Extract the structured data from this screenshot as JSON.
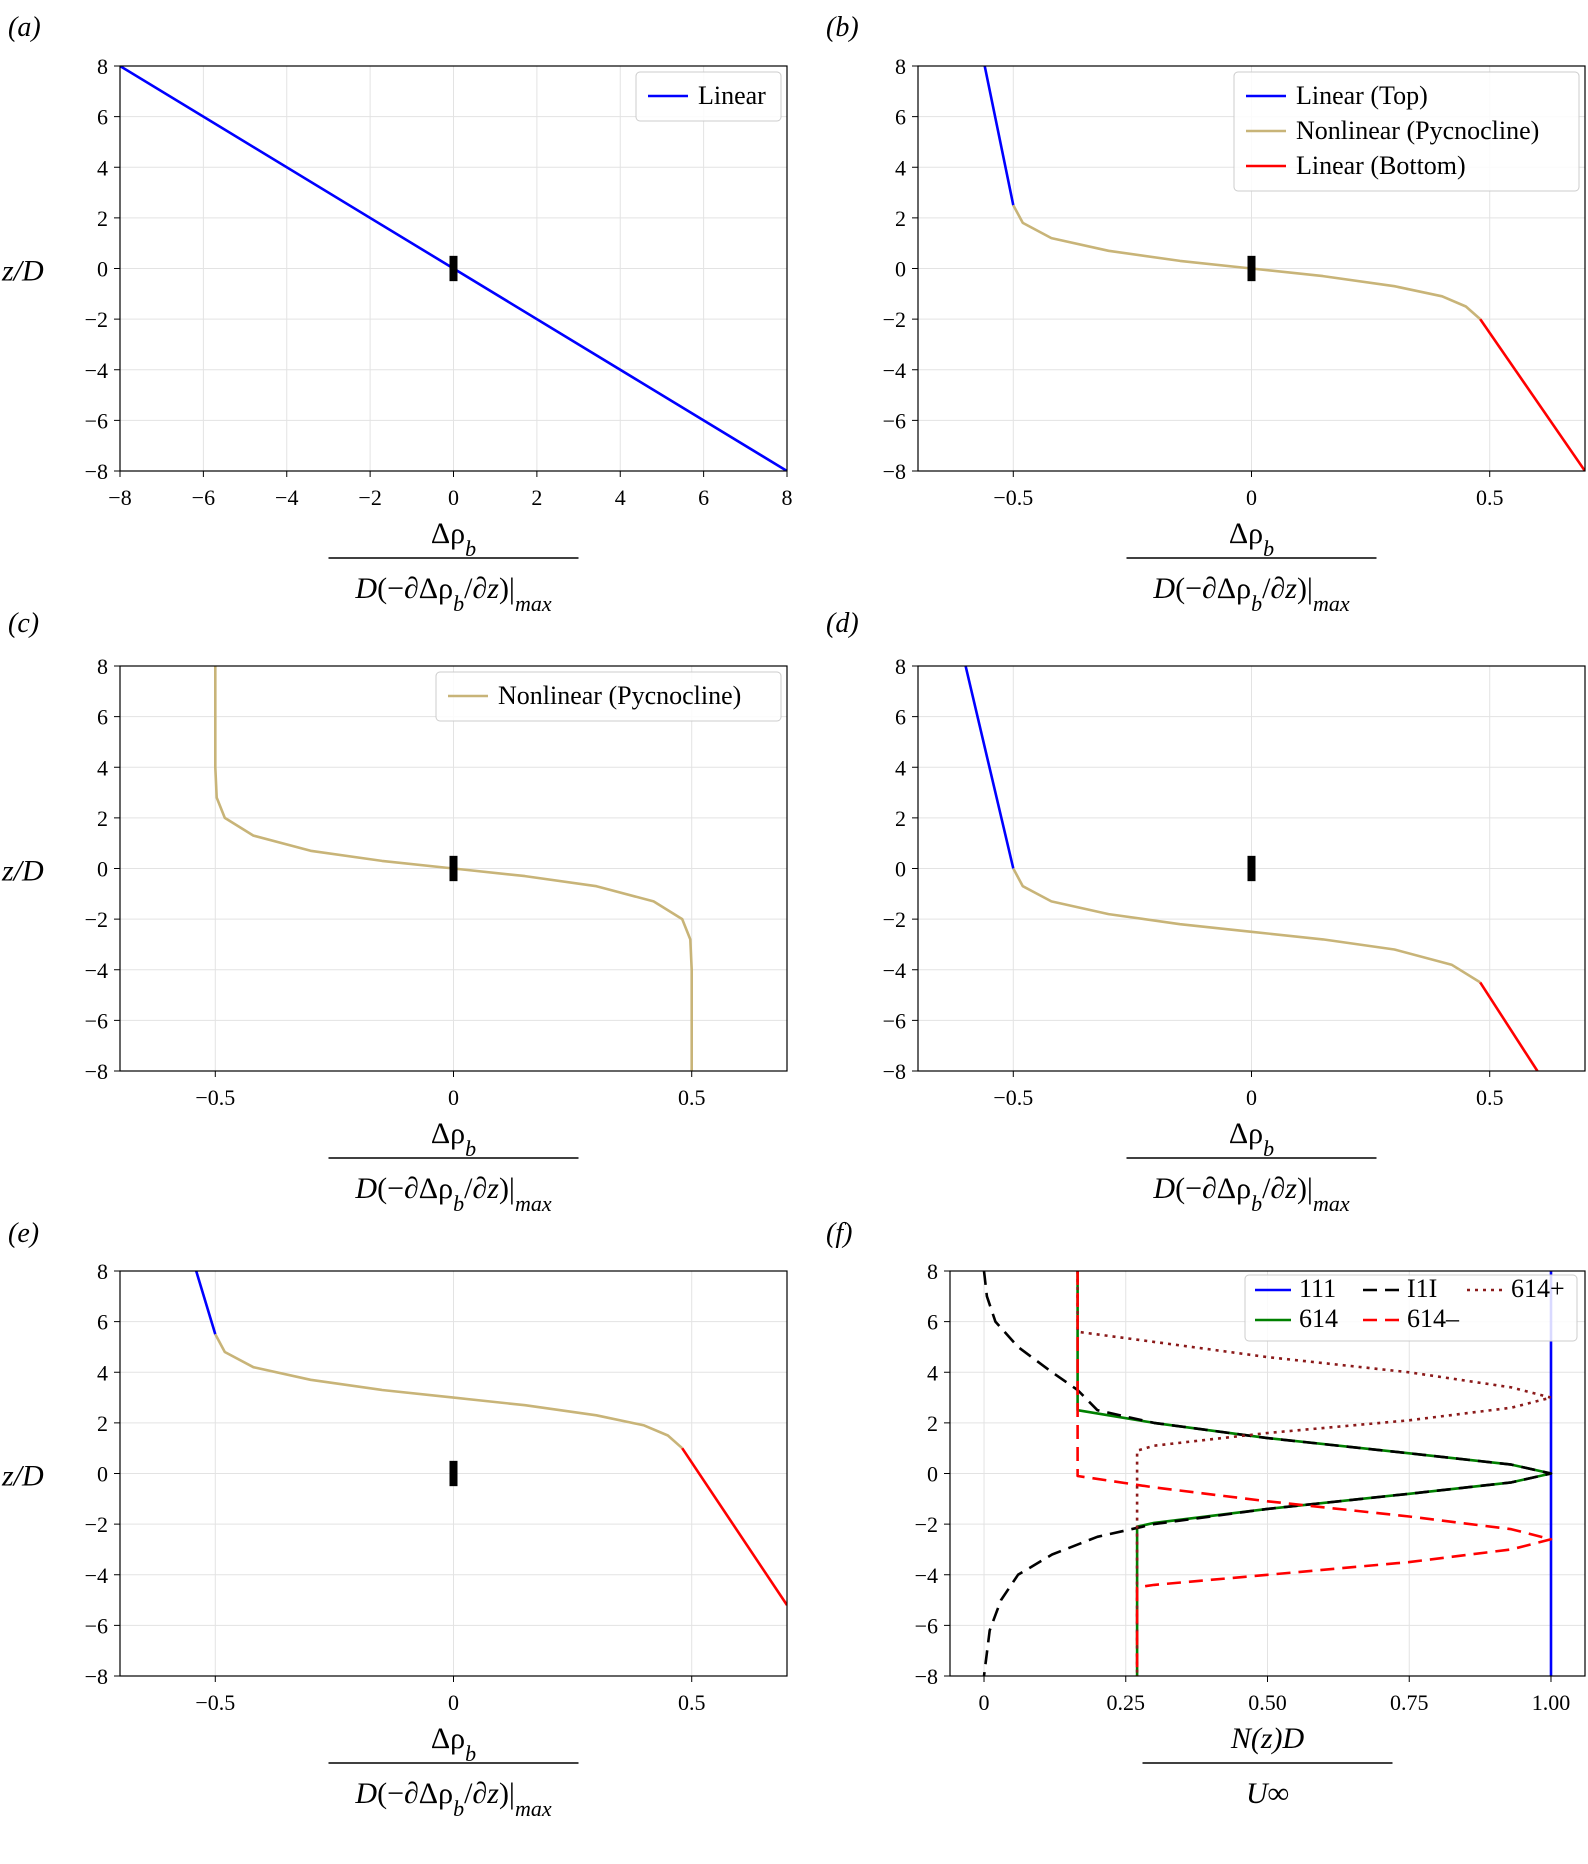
{
  "chart_data": [
    {
      "panel": "a",
      "panel_label": "(a)",
      "type": "line",
      "xlim": [
        -8,
        8
      ],
      "ylim": [
        -8,
        8
      ],
      "x_ticks": [
        -8,
        -6,
        -4,
        -2,
        0,
        2,
        4,
        6,
        8
      ],
      "x_tick_labels": [
        "−8",
        "−6",
        "−4",
        "−2",
        "0",
        "2",
        "4",
        "6",
        "8"
      ],
      "y_ticks": [
        8,
        6,
        4,
        2,
        0,
        -2,
        -4,
        -6,
        -8
      ],
      "y_tick_labels": [
        "8",
        "6",
        "4",
        "2",
        "0",
        "−2",
        "−4",
        "−6",
        "−8"
      ],
      "ylabel": "z/D",
      "xlabel": {
        "numerator": "Δρ_b",
        "denominator": "D(−∂Δρ_b/∂z)|_max"
      },
      "legend": {
        "position": "top-right",
        "entries": [
          {
            "label": "Linear",
            "color": "#0000ff",
            "style": "solid"
          }
        ]
      },
      "body_marker": {
        "x": 0,
        "z": [
          -0.5,
          0.5
        ]
      },
      "series": [
        {
          "name": "Linear",
          "color": "#0000ff",
          "style": "solid",
          "points": [
            [
              -8,
              8
            ],
            [
              8,
              -8
            ]
          ]
        }
      ]
    },
    {
      "panel": "b",
      "panel_label": "(b)",
      "type": "line",
      "xlim": [
        -0.7,
        0.7
      ],
      "ylim": [
        -8,
        8
      ],
      "x_ticks": [
        -0.5,
        0,
        0.5
      ],
      "x_tick_labels": [
        "−0.5",
        "0",
        "0.5"
      ],
      "y_ticks": [
        8,
        6,
        4,
        2,
        0,
        -2,
        -4,
        -6,
        -8
      ],
      "y_tick_labels": [
        "8",
        "6",
        "4",
        "2",
        "0",
        "−2",
        "−4",
        "−6",
        "−8"
      ],
      "ylabel": "",
      "xlabel": {
        "numerator": "Δρ_b",
        "denominator": "D(−∂Δρ_b/∂z)|_max"
      },
      "legend": {
        "position": "top-right",
        "entries": [
          {
            "label": "Linear (Top)",
            "color": "#0000ff",
            "style": "solid"
          },
          {
            "label": "Nonlinear (Pycnocline)",
            "color": "#c8b478",
            "style": "solid"
          },
          {
            "label": "Linear (Bottom)",
            "color": "#ff0000",
            "style": "solid"
          }
        ]
      },
      "body_marker": {
        "x": 0,
        "z": [
          -0.5,
          0.5
        ]
      },
      "series": [
        {
          "name": "Linear (Top)",
          "color": "#0000ff",
          "style": "solid",
          "points": [
            [
              -0.5,
              2.5
            ],
            [
              -0.56,
              8
            ]
          ]
        },
        {
          "name": "Nonlinear (Pycnocline)",
          "color": "#c8b478",
          "style": "solid",
          "points": [
            [
              -0.5,
              2.5
            ],
            [
              -0.48,
              1.8
            ],
            [
              -0.42,
              1.2
            ],
            [
              -0.3,
              0.7
            ],
            [
              -0.15,
              0.3
            ],
            [
              0,
              0
            ],
            [
              0.15,
              -0.3
            ],
            [
              0.3,
              -0.7
            ],
            [
              0.4,
              -1.1
            ],
            [
              0.45,
              -1.5
            ],
            [
              0.48,
              -2.0
            ]
          ]
        },
        {
          "name": "Linear (Bottom)",
          "color": "#ff0000",
          "style": "solid",
          "points": [
            [
              0.48,
              -2.0
            ],
            [
              0.7,
              -8
            ]
          ]
        }
      ]
    },
    {
      "panel": "c",
      "panel_label": "(c)",
      "type": "line",
      "xlim": [
        -0.7,
        0.7
      ],
      "ylim": [
        -8,
        8
      ],
      "x_ticks": [
        -0.5,
        0,
        0.5
      ],
      "x_tick_labels": [
        "−0.5",
        "0",
        "0.5"
      ],
      "y_ticks": [
        8,
        6,
        4,
        2,
        0,
        -2,
        -4,
        -6,
        -8
      ],
      "y_tick_labels": [
        "8",
        "6",
        "4",
        "2",
        "0",
        "−2",
        "−4",
        "−6",
        "−8"
      ],
      "ylabel": "z/D",
      "xlabel": {
        "numerator": "Δρ_b",
        "denominator": "D(−∂Δρ_b/∂z)|_max"
      },
      "legend": {
        "position": "top-right",
        "entries": [
          {
            "label": "Nonlinear (Pycnocline)",
            "color": "#c8b478",
            "style": "solid"
          }
        ]
      },
      "body_marker": {
        "x": 0,
        "z": [
          -0.5,
          0.5
        ]
      },
      "series": [
        {
          "name": "Nonlinear (Pycnocline)",
          "color": "#c8b478",
          "style": "solid",
          "points": [
            [
              -0.5,
              8
            ],
            [
              -0.5,
              4
            ],
            [
              -0.497,
              2.8
            ],
            [
              -0.48,
              2.0
            ],
            [
              -0.42,
              1.3
            ],
            [
              -0.3,
              0.7
            ],
            [
              -0.15,
              0.3
            ],
            [
              0,
              0
            ],
            [
              0.15,
              -0.3
            ],
            [
              0.3,
              -0.7
            ],
            [
              0.42,
              -1.3
            ],
            [
              0.48,
              -2.0
            ],
            [
              0.497,
              -2.8
            ],
            [
              0.5,
              -4
            ],
            [
              0.5,
              -8
            ]
          ]
        }
      ]
    },
    {
      "panel": "d",
      "panel_label": "(d)",
      "type": "line",
      "xlim": [
        -0.7,
        0.7
      ],
      "ylim": [
        -8,
        8
      ],
      "x_ticks": [
        -0.5,
        0,
        0.5
      ],
      "x_tick_labels": [
        "−0.5",
        "0",
        "0.5"
      ],
      "y_ticks": [
        8,
        6,
        4,
        2,
        0,
        -2,
        -4,
        -6,
        -8
      ],
      "y_tick_labels": [
        "8",
        "6",
        "4",
        "2",
        "0",
        "−2",
        "−4",
        "−6",
        "−8"
      ],
      "ylabel": "",
      "xlabel": {
        "numerator": "Δρ_b",
        "denominator": "D(−∂Δρ_b/∂z)|_max"
      },
      "legend": null,
      "body_marker": {
        "x": 0,
        "z": [
          -0.5,
          0.5
        ]
      },
      "series": [
        {
          "name": "Linear (Top)",
          "color": "#0000ff",
          "style": "solid",
          "points": [
            [
              -0.5,
              0
            ],
            [
              -0.6,
              8
            ]
          ]
        },
        {
          "name": "Nonlinear (Pycnocline)",
          "color": "#c8b478",
          "style": "solid",
          "points": [
            [
              -0.5,
              0
            ],
            [
              -0.48,
              -0.7
            ],
            [
              -0.42,
              -1.3
            ],
            [
              -0.3,
              -1.8
            ],
            [
              -0.15,
              -2.2
            ],
            [
              0,
              -2.5
            ],
            [
              0.15,
              -2.8
            ],
            [
              0.3,
              -3.2
            ],
            [
              0.42,
              -3.8
            ],
            [
              0.48,
              -4.5
            ]
          ]
        },
        {
          "name": "Linear (Bottom)",
          "color": "#ff0000",
          "style": "solid",
          "points": [
            [
              0.48,
              -4.5
            ],
            [
              0.6,
              -8
            ]
          ]
        }
      ]
    },
    {
      "panel": "e",
      "panel_label": "(e)",
      "type": "line",
      "xlim": [
        -0.7,
        0.7
      ],
      "ylim": [
        -8,
        8
      ],
      "x_ticks": [
        -0.5,
        0,
        0.5
      ],
      "x_tick_labels": [
        "−0.5",
        "0",
        "0.5"
      ],
      "y_ticks": [
        8,
        6,
        4,
        2,
        0,
        -2,
        -4,
        -6,
        -8
      ],
      "y_tick_labels": [
        "8",
        "6",
        "4",
        "2",
        "0",
        "−2",
        "−4",
        "−6",
        "−8"
      ],
      "ylabel": "z/D",
      "xlabel": {
        "numerator": "Δρ_b",
        "denominator": "D(−∂Δρ_b/∂z)|_max"
      },
      "legend": null,
      "body_marker": {
        "x": 0,
        "z": [
          -0.5,
          0.5
        ]
      },
      "series": [
        {
          "name": "Linear (Top)",
          "color": "#0000ff",
          "style": "solid",
          "points": [
            [
              -0.5,
              5.5
            ],
            [
              -0.54,
              8
            ]
          ]
        },
        {
          "name": "Nonlinear (Pycnocline)",
          "color": "#c8b478",
          "style": "solid",
          "points": [
            [
              -0.5,
              5.5
            ],
            [
              -0.48,
              4.8
            ],
            [
              -0.42,
              4.2
            ],
            [
              -0.3,
              3.7
            ],
            [
              -0.15,
              3.3
            ],
            [
              0,
              3.0
            ],
            [
              0.15,
              2.7
            ],
            [
              0.3,
              2.3
            ],
            [
              0.4,
              1.9
            ],
            [
              0.45,
              1.5
            ],
            [
              0.48,
              1.0
            ]
          ]
        },
        {
          "name": "Linear (Bottom)",
          "color": "#ff0000",
          "style": "solid",
          "points": [
            [
              0.48,
              1.0
            ],
            [
              0.7,
              -5.2
            ]
          ]
        }
      ]
    },
    {
      "panel": "f",
      "panel_label": "(f)",
      "type": "line",
      "xlim": [
        -0.06,
        1.06
      ],
      "ylim": [
        -8,
        8
      ],
      "x_ticks": [
        0,
        0.25,
        0.5,
        0.75,
        1.0
      ],
      "x_tick_labels": [
        "0",
        "0.25",
        "0.50",
        "0.75",
        "1.00"
      ],
      "y_ticks": [
        8,
        6,
        4,
        2,
        0,
        -2,
        -4,
        -6,
        -8
      ],
      "y_tick_labels": [
        "8",
        "6",
        "4",
        "2",
        "0",
        "−2",
        "−4",
        "−6",
        "−8"
      ],
      "ylabel": "",
      "xlabel": {
        "numerator": "N(z)D",
        "denominator": "U∞"
      },
      "legend": {
        "position": "top-right",
        "entries": [
          {
            "label": "111",
            "color": "#0000ff",
            "style": "solid"
          },
          {
            "label": "I1I",
            "color": "#000000",
            "style": "dashed"
          },
          {
            "label": "614+",
            "color": "#8b1a1a",
            "style": "dotted"
          },
          {
            "label": "614",
            "color": "#008000",
            "style": "solid"
          },
          {
            "label": "614–",
            "color": "#ff0000",
            "style": "dashed"
          }
        ]
      },
      "body_marker": null,
      "series": [
        {
          "name": "111",
          "color": "#0000ff",
          "style": "solid",
          "points": [
            [
              1.0,
              -8
            ],
            [
              1.0,
              8
            ]
          ]
        },
        {
          "name": "614",
          "color": "#008000",
          "style": "solid",
          "points": [
            [
              0.165,
              8
            ],
            [
              0.165,
              2.5
            ],
            [
              0.3,
              2.0
            ],
            [
              0.5,
              1.4
            ],
            [
              0.75,
              0.8
            ],
            [
              0.93,
              0.35
            ],
            [
              1.0,
              0
            ],
            [
              0.93,
              -0.35
            ],
            [
              0.75,
              -0.8
            ],
            [
              0.5,
              -1.4
            ],
            [
              0.3,
              -1.95
            ],
            [
              0.27,
              -2.1
            ],
            [
              0.27,
              -8
            ]
          ]
        },
        {
          "name": "I1I",
          "color": "#000000",
          "style": "dashed",
          "points": [
            [
              0.0,
              8
            ],
            [
              0.005,
              7
            ],
            [
              0.02,
              6
            ],
            [
              0.06,
              5
            ],
            [
              0.12,
              4
            ],
            [
              0.165,
              3.3
            ],
            [
              0.2,
              2.5
            ],
            [
              0.3,
              2.0
            ],
            [
              0.5,
              1.4
            ],
            [
              0.75,
              0.8
            ],
            [
              0.93,
              0.35
            ],
            [
              1.0,
              0
            ],
            [
              0.93,
              -0.35
            ],
            [
              0.75,
              -0.8
            ],
            [
              0.5,
              -1.4
            ],
            [
              0.3,
              -2.0
            ],
            [
              0.2,
              -2.5
            ],
            [
              0.12,
              -3.2
            ],
            [
              0.06,
              -4
            ],
            [
              0.03,
              -5
            ],
            [
              0.01,
              -6.2
            ],
            [
              0.0,
              -8
            ]
          ]
        },
        {
          "name": "614+",
          "color": "#8b1a1a",
          "style": "dotted",
          "points": [
            [
              0.165,
              8
            ],
            [
              0.165,
              5.6
            ],
            [
              0.3,
              5.2
            ],
            [
              0.5,
              4.6
            ],
            [
              0.75,
              4.0
            ],
            [
              0.93,
              3.4
            ],
            [
              1.0,
              3.0
            ],
            [
              0.93,
              2.6
            ],
            [
              0.75,
              2.1
            ],
            [
              0.5,
              1.6
            ],
            [
              0.3,
              1.1
            ],
            [
              0.27,
              0.9
            ],
            [
              0.27,
              -8
            ]
          ]
        },
        {
          "name": "614–",
          "color": "#ff0000",
          "style": "dashed",
          "points": [
            [
              0.165,
              8
            ],
            [
              0.165,
              -0.1
            ],
            [
              0.3,
              -0.55
            ],
            [
              0.5,
              -1.1
            ],
            [
              0.75,
              -1.7
            ],
            [
              0.93,
              -2.2
            ],
            [
              1.0,
              -2.6
            ],
            [
              0.93,
              -3.0
            ],
            [
              0.75,
              -3.5
            ],
            [
              0.5,
              -4.0
            ],
            [
              0.3,
              -4.4
            ],
            [
              0.27,
              -4.5
            ],
            [
              0.27,
              -8
            ]
          ]
        }
      ]
    }
  ]
}
